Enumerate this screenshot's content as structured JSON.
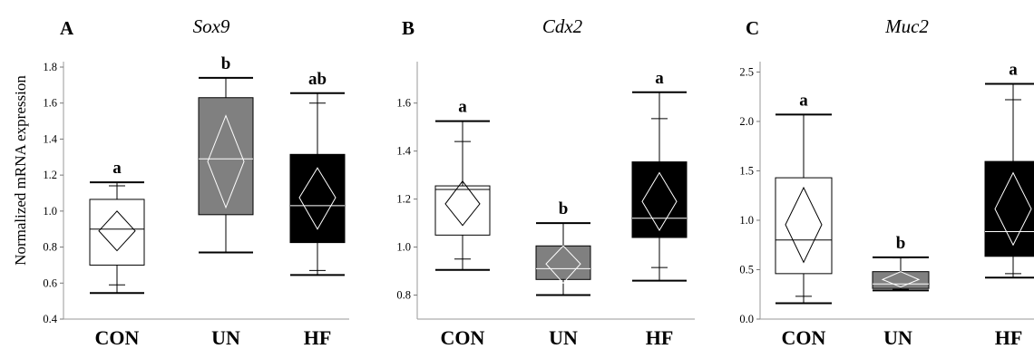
{
  "ylabel": "Normalized mRNA expression",
  "colors": {
    "CON": "#ffffff",
    "UN": "#808080",
    "HF": "#000000"
  },
  "chart_data": [
    {
      "type": "box",
      "panel": "A",
      "title": "Sox9",
      "ylim": [
        0.4,
        1.8
      ],
      "yticks": [
        "0.4",
        "0.6",
        "0.8",
        "1.0",
        "1.2",
        "1.4",
        "1.6",
        "1.8"
      ],
      "categories": [
        "CON",
        "UN",
        "HF"
      ],
      "boxes": [
        {
          "category": "CON",
          "whisker_low": 0.545,
          "tick_low": 0.59,
          "q1": 0.7,
          "median": 0.9,
          "q3": 1.065,
          "tick_high": 1.14,
          "whisker_high": 1.16,
          "mean": 0.89,
          "ci_low": 0.78,
          "ci_high": 1.0,
          "sig": "a"
        },
        {
          "category": "UN",
          "whisker_low": 0.77,
          "tick_low": 0.77,
          "q1": 0.98,
          "median": 1.29,
          "q3": 1.63,
          "tick_high": 1.74,
          "whisker_high": 1.74,
          "mean": 1.275,
          "ci_low": 1.02,
          "ci_high": 1.53,
          "sig": "b"
        },
        {
          "category": "HF",
          "whisker_low": 0.645,
          "tick_low": 0.67,
          "q1": 0.825,
          "median": 1.03,
          "q3": 1.315,
          "tick_high": 1.6,
          "whisker_high": 1.655,
          "mean": 1.075,
          "ci_low": 0.9,
          "ci_high": 1.24,
          "sig": "ab"
        }
      ]
    },
    {
      "type": "box",
      "panel": "B",
      "title": "Cdx2",
      "ylim": [
        0.7,
        1.75
      ],
      "yticks": [
        "0.8",
        "1.0",
        "1.2",
        "1.4",
        "1.6"
      ],
      "categories": [
        "CON",
        "UN",
        "HF"
      ],
      "boxes": [
        {
          "category": "CON",
          "whisker_low": 0.905,
          "tick_low": 0.95,
          "q1": 1.05,
          "median": 1.24,
          "q3": 1.255,
          "tick_high": 1.44,
          "whisker_high": 1.525,
          "mean": 1.18,
          "ci_low": 1.09,
          "ci_high": 1.275,
          "sig": "a"
        },
        {
          "category": "UN",
          "whisker_low": 0.8,
          "tick_low": 0.8,
          "q1": 0.865,
          "median": 0.91,
          "q3": 1.005,
          "tick_high": 1.1,
          "whisker_high": 1.1,
          "mean": 0.93,
          "ci_low": 0.85,
          "ci_high": 1.005,
          "sig": "b"
        },
        {
          "category": "HF",
          "whisker_low": 0.86,
          "tick_low": 0.915,
          "q1": 1.04,
          "median": 1.12,
          "q3": 1.355,
          "tick_high": 1.535,
          "whisker_high": 1.645,
          "mean": 1.19,
          "ci_low": 1.07,
          "ci_high": 1.31,
          "sig": "a"
        }
      ]
    },
    {
      "type": "box",
      "panel": "C",
      "title": "Muc2",
      "ylim": [
        0.0,
        2.55
      ],
      "yticks": [
        "0.0",
        "0.5",
        "1.0",
        "1.5",
        "2.0",
        "2.5"
      ],
      "categories": [
        "CON",
        "UN",
        "HF"
      ],
      "boxes": [
        {
          "category": "CON",
          "whisker_low": 0.16,
          "tick_low": 0.23,
          "q1": 0.46,
          "median": 0.8,
          "q3": 1.43,
          "tick_high": 2.07,
          "whisker_high": 2.07,
          "mean": 0.955,
          "ci_low": 0.575,
          "ci_high": 1.33,
          "sig": "a"
        },
        {
          "category": "UN",
          "whisker_low": 0.29,
          "tick_low": 0.3,
          "q1": 0.31,
          "median": 0.355,
          "q3": 0.48,
          "tick_high": 0.62,
          "whisker_high": 0.625,
          "mean": 0.4,
          "ci_low": 0.325,
          "ci_high": 0.48,
          "sig": "b"
        },
        {
          "category": "HF",
          "whisker_low": 0.42,
          "tick_low": 0.46,
          "q1": 0.635,
          "median": 0.885,
          "q3": 1.595,
          "tick_high": 2.22,
          "whisker_high": 2.38,
          "mean": 1.115,
          "ci_low": 0.75,
          "ci_high": 1.48,
          "sig": "a"
        }
      ]
    }
  ]
}
